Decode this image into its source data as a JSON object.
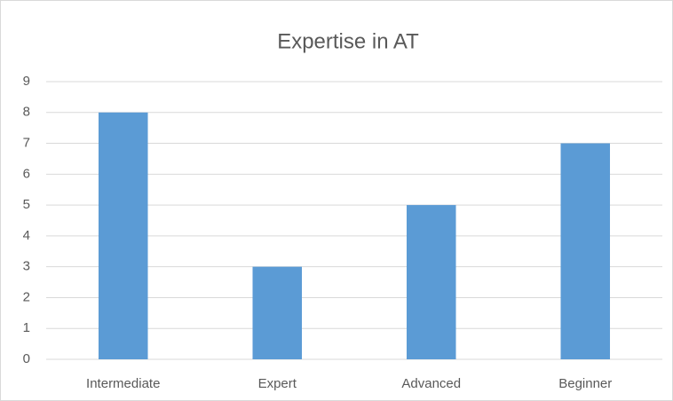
{
  "chart_data": {
    "type": "bar",
    "title": "Expertise in AT",
    "categories": [
      "Intermediate",
      "Expert",
      "Advanced",
      "Beginner"
    ],
    "values": [
      8,
      3,
      5,
      7
    ],
    "color": "#5b9bd5",
    "ylim": [
      0,
      9
    ],
    "yticks": [
      0,
      1,
      2,
      3,
      4,
      5,
      6,
      7,
      8,
      9
    ],
    "grid": true
  }
}
